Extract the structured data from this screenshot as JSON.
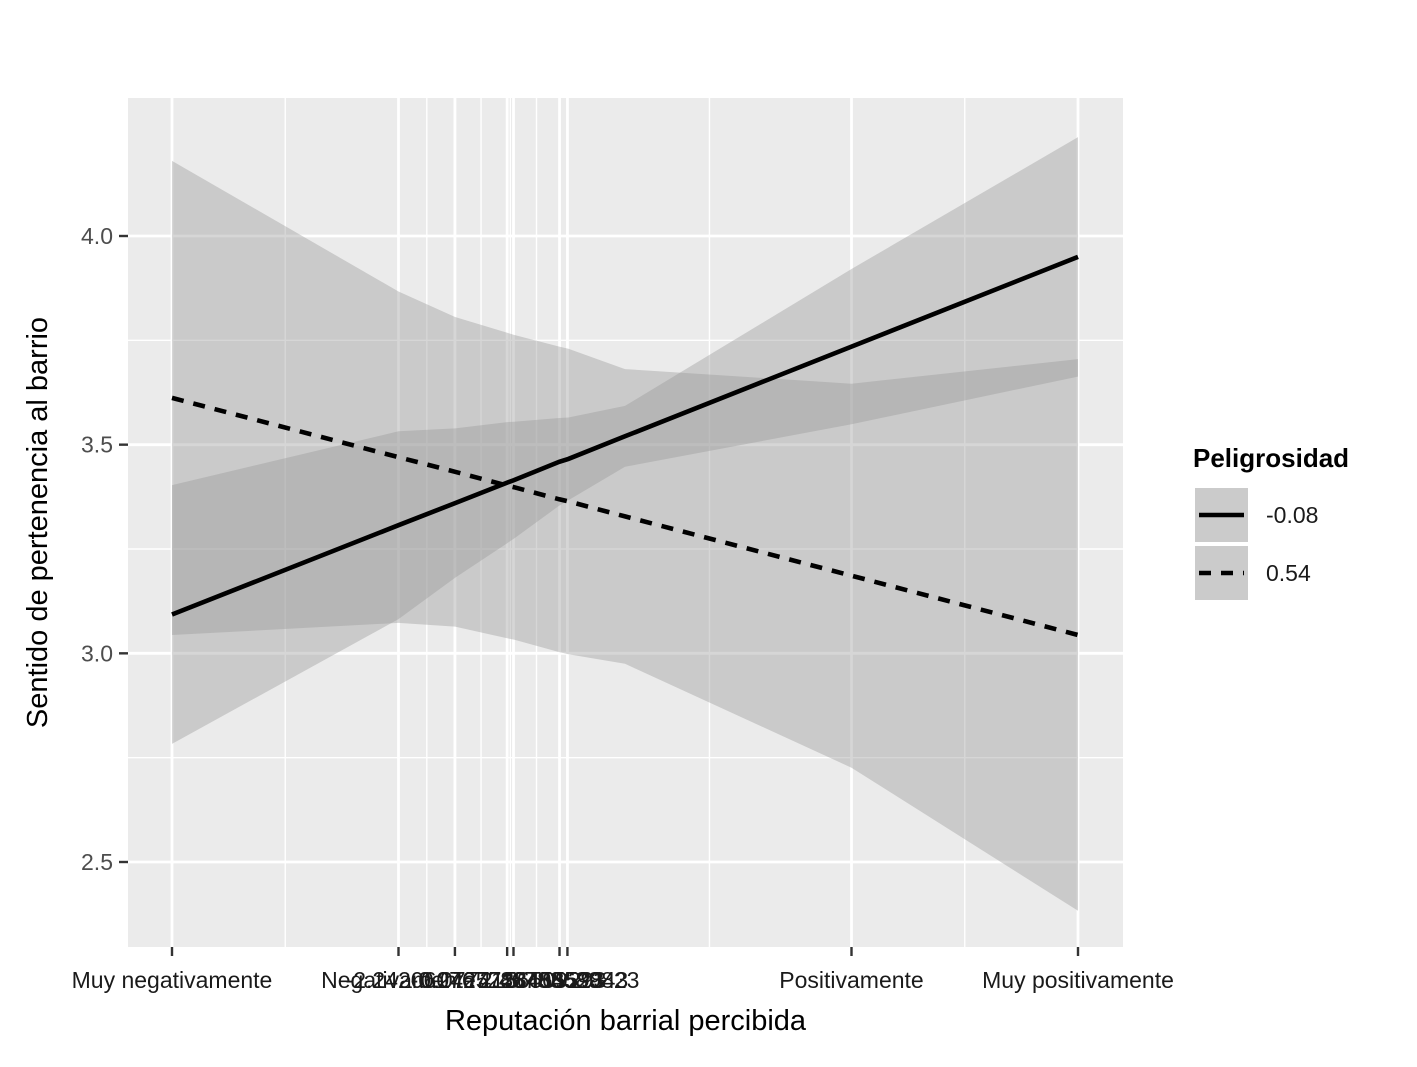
{
  "chart_data": {
    "type": "line",
    "title": "",
    "xlabel": "Reputación barrial percibida",
    "ylabel": "Sentido de pertenencia al barrio",
    "x_ticks": [
      {
        "value": -2,
        "label": "Muy negativamente"
      },
      {
        "value": -1,
        "label": "Negativamente"
      },
      {
        "value": -0.7509,
        "label": "-2.242060767288488"
      },
      {
        "value": -0.5203,
        "label": "-0.2425728455523"
      },
      {
        "value": -0.4923,
        "label": "0.0774156509293"
      },
      {
        "value": -0.2891,
        "label": "2.46783689823"
      },
      {
        "value": -0.2542,
        "label": "3.40459843"
      },
      {
        "value": 1,
        "label": "Positivamente"
      },
      {
        "value": 2,
        "label": "Muy positivamente"
      }
    ],
    "x_minor_gridlines": [
      -1.5,
      -0.875,
      -0.6356,
      -0.5063,
      -0.3907,
      0.3729,
      1.5
    ],
    "xlim": [
      -2.5,
      2.5
    ],
    "y_ticks": [
      2.5,
      3.0,
      3.5,
      4.0
    ],
    "y_minor_gridlines": [
      2.75,
      3.25,
      3.75
    ],
    "ylim": [
      2.3,
      4.33
    ],
    "grid": true,
    "legend": {
      "title": "Peligrosidad",
      "position": "right"
    },
    "series": [
      {
        "name": "-0.08",
        "linetype": "solid",
        "x": [
          -2,
          -1,
          -0.75,
          -0.52,
          -0.49,
          -0.29,
          -0.25,
          0,
          1,
          2
        ],
        "y": [
          3.093,
          3.307,
          3.36,
          3.409,
          3.415,
          3.459,
          3.466,
          3.52,
          3.735,
          3.95
        ],
        "ci_lower": [
          2.783,
          3.082,
          3.181,
          3.264,
          3.275,
          3.354,
          3.367,
          3.447,
          3.549,
          3.663
        ],
        "ci_upper": [
          3.403,
          3.532,
          3.539,
          3.554,
          3.555,
          3.564,
          3.565,
          3.593,
          3.921,
          4.237
        ]
      },
      {
        "name": "0.54",
        "linetype": "dashed",
        "x": [
          -2,
          -1,
          -0.75,
          -0.52,
          -0.49,
          -0.29,
          -0.25,
          0,
          1,
          2
        ],
        "y": [
          3.612,
          3.47,
          3.435,
          3.402,
          3.398,
          3.369,
          3.364,
          3.328,
          3.186,
          3.044
        ],
        "ci_lower": [
          3.044,
          3.073,
          3.064,
          3.036,
          3.033,
          3.003,
          2.998,
          2.975,
          2.726,
          2.383
        ],
        "ci_upper": [
          4.18,
          3.867,
          3.806,
          3.768,
          3.763,
          3.735,
          3.73,
          3.681,
          3.646,
          3.705
        ]
      }
    ],
    "colors": {
      "panel_background": "#ebebeb",
      "grid_line": "#ffffff",
      "ribbon": "#999999",
      "line": "#000000",
      "legend_key_background": "#cbcbcb"
    }
  }
}
